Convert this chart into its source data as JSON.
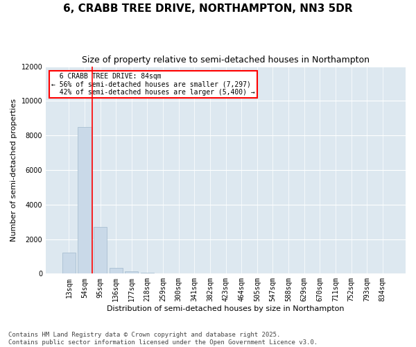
{
  "title": "6, CRABB TREE DRIVE, NORTHAMPTON, NN3 5DR",
  "subtitle": "Size of property relative to semi-detached houses in Northampton",
  "xlabel": "Distribution of semi-detached houses by size in Northampton",
  "ylabel": "Number of semi-detached properties",
  "bar_color": "#c9d9e8",
  "bar_edge_color": "#a0b8cc",
  "categories": [
    "13sqm",
    "54sqm",
    "95sqm",
    "136sqm",
    "177sqm",
    "218sqm",
    "259sqm",
    "300sqm",
    "341sqm",
    "382sqm",
    "423sqm",
    "464sqm",
    "505sqm",
    "547sqm",
    "588sqm",
    "629sqm",
    "670sqm",
    "711sqm",
    "752sqm",
    "793sqm",
    "834sqm"
  ],
  "values": [
    1200,
    8500,
    2700,
    350,
    120,
    60,
    0,
    0,
    0,
    0,
    0,
    0,
    0,
    0,
    0,
    0,
    0,
    0,
    0,
    0,
    0
  ],
  "ylim": [
    0,
    12000
  ],
  "yticks": [
    0,
    2000,
    4000,
    6000,
    8000,
    10000,
    12000
  ],
  "property_label": "6 CRABB TREE DRIVE: 84sqm",
  "pct_smaller": 56,
  "pct_smaller_count": "7,297",
  "pct_larger": 42,
  "pct_larger_count": "5,400",
  "footer": "Contains HM Land Registry data © Crown copyright and database right 2025.\nContains public sector information licensed under the Open Government Licence v3.0.",
  "fig_background": "#ffffff",
  "ax_background": "#dde8f0",
  "grid_color": "#ffffff",
  "title_fontsize": 11,
  "subtitle_fontsize": 9,
  "axis_label_fontsize": 8,
  "tick_fontsize": 7,
  "footer_fontsize": 6.5
}
